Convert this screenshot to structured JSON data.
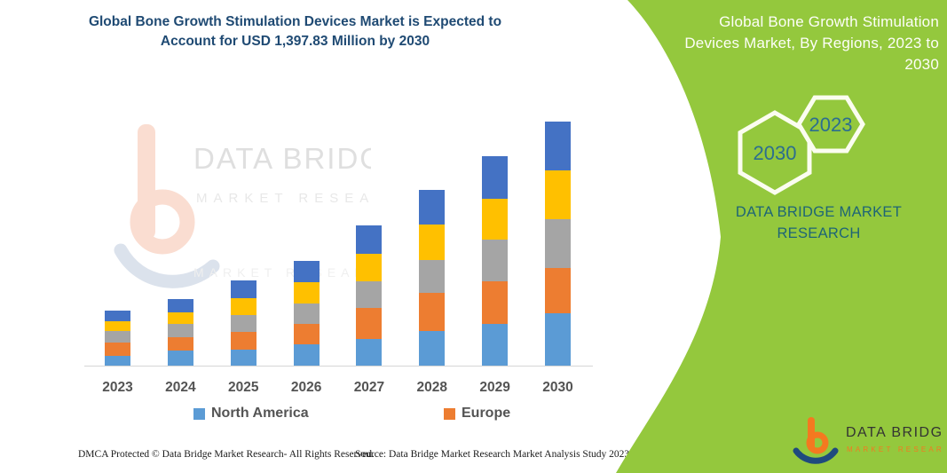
{
  "page": {
    "accent_green": "#94C83D"
  },
  "main_chart": {
    "title": "Global Bone Growth Stimulation Devices Market is Expected to Account for USD 1,397.83 Million by 2030"
  },
  "chart_data": {
    "type": "bar",
    "stacked": true,
    "title": "Global Bone Growth Stimulation Devices Market is Expected to Account for USD 1,397.83 Million by 2030",
    "unit": "USD Million",
    "categories": [
      "2023",
      "2024",
      "2025",
      "2026",
      "2027",
      "2028",
      "2029",
      "2030"
    ],
    "series": [
      {
        "name": "North America",
        "color": "#5B9BD5",
        "in_legend": true,
        "values": [
          56,
          86,
          92,
          120,
          152,
          198,
          239,
          300
        ]
      },
      {
        "name": "Europe",
        "color": "#ED7D31",
        "in_legend": true,
        "values": [
          76,
          76,
          100,
          117,
          178,
          218,
          244,
          260
        ]
      },
      {
        "name": "",
        "color": "#A5A5A5",
        "in_legend": false,
        "values": [
          66,
          76,
          97,
          117,
          152,
          188,
          239,
          280
        ]
      },
      {
        "name": "",
        "color": "#FFC000",
        "in_legend": false,
        "values": [
          56,
          66,
          97,
          122,
          158,
          203,
          234,
          279
        ]
      },
      {
        "name": "",
        "color": "#4472C4",
        "in_legend": false,
        "values": [
          61,
          76,
          100,
          124,
          163,
          199,
          244,
          278.83
        ]
      }
    ],
    "totals_estimated": [
      315,
      380,
      486,
      600,
      803,
      1006,
      1200,
      1397.83
    ],
    "ylim": [
      0,
      1500
    ],
    "y_axis_visible": false,
    "grid": false,
    "legend_position": "bottom"
  },
  "footer": {
    "left": "DMCA Protected © Data Bridge Market Research-  All Rights Reserved.",
    "right": "Source: Data Bridge Market Research  Market Analysis Study 2023"
  },
  "right_panel": {
    "title": "Global Bone Growth Stimulation Devices Market, By Regions, 2023 to 2030",
    "hexagons": {
      "large_year": "2030",
      "small_year": "2023"
    },
    "brand_text": "DATA BRIDGE MARKET RESEARCH",
    "logo": {
      "name": "DATA BRIDGE",
      "sub": "MARKET RESEARCH"
    }
  },
  "watermark": {
    "line1": "DATA BRIDGE",
    "line2": "MARKET RESEARCH",
    "line3": "MARKET RESEARCH"
  }
}
